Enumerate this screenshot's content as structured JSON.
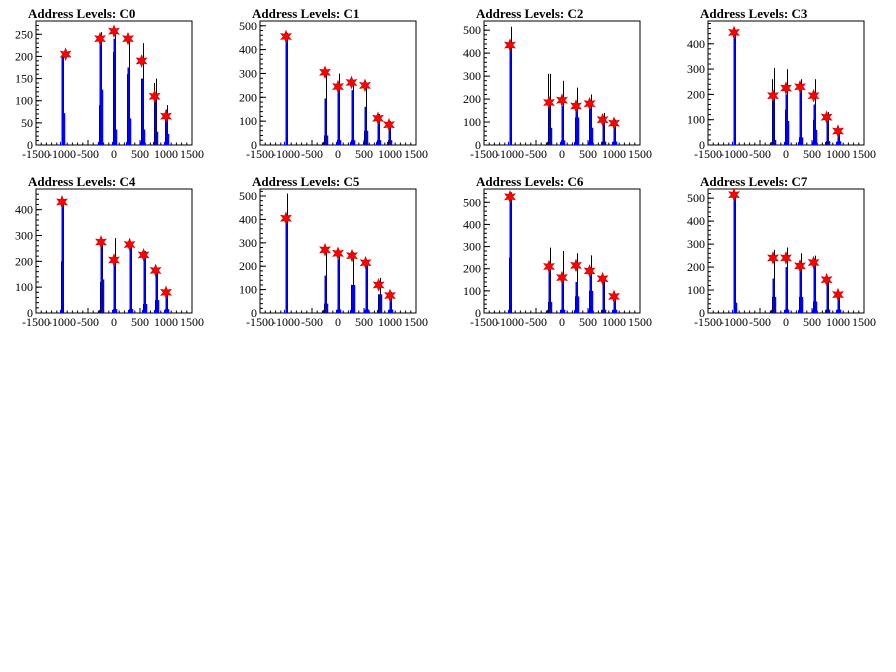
{
  "page": {
    "background": "#ffffff"
  },
  "style": {
    "blue": "#0000ff",
    "black": "#000000",
    "marker": "#ff0000"
  },
  "chart_data": [
    {
      "type": "histogram",
      "title": "Address Levels: C0",
      "xlim": [
        -1500,
        1500
      ],
      "ylim": [
        0,
        280
      ],
      "xticks": [
        -1500,
        -1000,
        -500,
        0,
        500,
        1000,
        1500
      ],
      "yticks": [
        0,
        50,
        100,
        150,
        200,
        250
      ],
      "peaks": [
        {
          "x": -1000,
          "blue": 200,
          "black": 210,
          "blue_side": 72,
          "black_side": 0
        },
        {
          "x": -270,
          "blue": 240,
          "black": 255,
          "blue_side": 125,
          "black_side": 90
        },
        {
          "x": 0,
          "blue": 240,
          "black": 250,
          "blue_side": 35,
          "black_side": 210
        },
        {
          "x": 270,
          "blue": 175,
          "black": 245,
          "blue_side": 60,
          "black_side": 160
        },
        {
          "x": 530,
          "blue": 150,
          "black": 230,
          "blue_side": 35,
          "black_side": 150
        },
        {
          "x": 780,
          "blue": 115,
          "black": 150,
          "blue_side": 30,
          "black_side": 140
        },
        {
          "x": 1000,
          "blue": 80,
          "black": 90,
          "blue_side": 25,
          "black_side": 75
        }
      ],
      "markers": [
        [
          -930,
          205
        ],
        [
          -270,
          240
        ],
        [
          0,
          257
        ],
        [
          270,
          240
        ],
        [
          530,
          190
        ],
        [
          780,
          110
        ],
        [
          1000,
          65
        ]
      ]
    },
    {
      "type": "histogram",
      "title": "Address Levels: C1",
      "xlim": [
        -1500,
        1500
      ],
      "ylim": [
        0,
        520
      ],
      "xticks": [
        -1500,
        -1000,
        -500,
        0,
        500,
        1000,
        1500
      ],
      "yticks": [
        0,
        100,
        200,
        300,
        400,
        500
      ],
      "peaks": [
        {
          "x": -1000,
          "blue": 460,
          "black": 470,
          "blue_side": 0,
          "black_side": 0
        },
        {
          "x": -250,
          "blue": 195,
          "black": 310,
          "blue_side": 40,
          "black_side": 40
        },
        {
          "x": 0,
          "blue": 230,
          "black": 300,
          "blue_side": 20,
          "black_side": 20
        },
        {
          "x": 260,
          "blue": 230,
          "black": 270,
          "blue_side": 20,
          "black_side": 20
        },
        {
          "x": 520,
          "blue": 160,
          "black": 260,
          "blue_side": 60,
          "black_side": 60
        },
        {
          "x": 770,
          "blue": 100,
          "black": 130,
          "blue_side": 20,
          "black_side": 20
        },
        {
          "x": 980,
          "blue": 75,
          "black": 100,
          "blue_side": 20,
          "black_side": 20
        }
      ],
      "markers": [
        [
          -1000,
          455
        ],
        [
          -250,
          305
        ],
        [
          0,
          245
        ],
        [
          260,
          262
        ],
        [
          520,
          250
        ],
        [
          770,
          112
        ],
        [
          980,
          85
        ]
      ]
    },
    {
      "type": "histogram",
      "title": "Address Levels: C2",
      "xlim": [
        -1500,
        1500
      ],
      "ylim": [
        0,
        540
      ],
      "xticks": [
        -1500,
        -1000,
        -500,
        0,
        500,
        1000,
        1500
      ],
      "yticks": [
        0,
        100,
        200,
        300,
        400,
        500
      ],
      "peaks": [
        {
          "x": -1000,
          "blue": 430,
          "black": 515,
          "blue_side": 0,
          "black_side": 0
        },
        {
          "x": -250,
          "blue": 180,
          "black": 310,
          "blue_side": 75,
          "black_side": 310
        },
        {
          "x": 0,
          "blue": 170,
          "black": 280,
          "blue_side": 20,
          "black_side": 20
        },
        {
          "x": 270,
          "blue": 150,
          "black": 250,
          "blue_side": 120,
          "black_side": 120
        },
        {
          "x": 530,
          "blue": 160,
          "black": 220,
          "blue_side": 75,
          "black_side": 200
        },
        {
          "x": 780,
          "blue": 100,
          "black": 140,
          "blue_side": 15,
          "black_side": 15
        },
        {
          "x": 1000,
          "blue": 80,
          "black": 110,
          "blue_side": 15,
          "black_side": 15
        }
      ],
      "markers": [
        [
          -1000,
          435
        ],
        [
          -250,
          185
        ],
        [
          0,
          195
        ],
        [
          270,
          170
        ],
        [
          530,
          180
        ],
        [
          780,
          110
        ],
        [
          1000,
          95
        ]
      ]
    },
    {
      "type": "histogram",
      "title": "Address Levels: C3",
      "xlim": [
        -1500,
        1500
      ],
      "ylim": [
        0,
        490
      ],
      "xticks": [
        -1500,
        -1000,
        -500,
        0,
        500,
        1000,
        1500
      ],
      "yticks": [
        0,
        100,
        200,
        300,
        400
      ],
      "peaks": [
        {
          "x": -1000,
          "blue": 430,
          "black": 450,
          "blue_side": 0,
          "black_side": 0
        },
        {
          "x": -250,
          "blue": 195,
          "black": 305,
          "blue_side": 20,
          "black_side": 260
        },
        {
          "x": 0,
          "blue": 200,
          "black": 300,
          "blue_side": 95,
          "black_side": 140
        },
        {
          "x": 270,
          "blue": 225,
          "black": 260,
          "blue_side": 30,
          "black_side": 30
        },
        {
          "x": 530,
          "blue": 160,
          "black": 260,
          "blue_side": 60,
          "black_side": 100
        },
        {
          "x": 780,
          "blue": 95,
          "black": 130,
          "blue_side": 15,
          "black_side": 15
        },
        {
          "x": 1000,
          "blue": 45,
          "black": 60,
          "blue_side": 15,
          "black_side": 15
        }
      ],
      "markers": [
        [
          -1000,
          445
        ],
        [
          -250,
          195
        ],
        [
          0,
          225
        ],
        [
          270,
          230
        ],
        [
          530,
          195
        ],
        [
          780,
          110
        ],
        [
          1000,
          55
        ]
      ]
    },
    {
      "type": "histogram",
      "title": "Address Levels: C4",
      "xlim": [
        -1500,
        1500
      ],
      "ylim": [
        0,
        480
      ],
      "xticks": [
        -1500,
        -1000,
        -500,
        0,
        500,
        1000,
        1500
      ],
      "yticks": [
        0,
        100,
        200,
        300,
        400
      ],
      "peaks": [
        {
          "x": -1000,
          "blue": 420,
          "black": 440,
          "blue_side": 0,
          "black_side": 200
        },
        {
          "x": -250,
          "blue": 270,
          "black": 280,
          "blue_side": 130,
          "black_side": 120
        },
        {
          "x": 0,
          "blue": 200,
          "black": 290,
          "blue_side": 15,
          "black_side": 15
        },
        {
          "x": 300,
          "blue": 265,
          "black": 270,
          "blue_side": 15,
          "black_side": 15
        },
        {
          "x": 570,
          "blue": 210,
          "black": 240,
          "blue_side": 35,
          "black_side": 35
        },
        {
          "x": 800,
          "blue": 155,
          "black": 170,
          "blue_side": 50,
          "black_side": 50
        },
        {
          "x": 1000,
          "blue": 70,
          "black": 80,
          "blue_side": 15,
          "black_side": 15
        }
      ],
      "markers": [
        [
          -1000,
          430
        ],
        [
          -250,
          275
        ],
        [
          0,
          205
        ],
        [
          300,
          265
        ],
        [
          570,
          225
        ],
        [
          800,
          165
        ],
        [
          1000,
          80
        ]
      ]
    },
    {
      "type": "histogram",
      "title": "Address Levels: C5",
      "xlim": [
        -1500,
        1500
      ],
      "ylim": [
        0,
        530
      ],
      "xticks": [
        -1500,
        -1000,
        -500,
        0,
        500,
        1000,
        1500
      ],
      "yticks": [
        0,
        100,
        200,
        300,
        400,
        500
      ],
      "peaks": [
        {
          "x": -1000,
          "blue": 400,
          "black": 510,
          "blue_side": 0,
          "black_side": 0
        },
        {
          "x": -250,
          "blue": 160,
          "black": 280,
          "blue_side": 40,
          "black_side": 40
        },
        {
          "x": 0,
          "blue": 230,
          "black": 260,
          "blue_side": 15,
          "black_side": 15
        },
        {
          "x": 270,
          "blue": 120,
          "black": 260,
          "blue_side": 120,
          "black_side": 120
        },
        {
          "x": 530,
          "blue": 200,
          "black": 220,
          "blue_side": 15,
          "black_side": 15
        },
        {
          "x": 780,
          "blue": 80,
          "black": 150,
          "blue_side": 80,
          "black_side": 80
        },
        {
          "x": 1000,
          "blue": 60,
          "black": 90,
          "blue_side": 15,
          "black_side": 15
        }
      ],
      "markers": [
        [
          -1000,
          405
        ],
        [
          -250,
          270
        ],
        [
          0,
          255
        ],
        [
          270,
          245
        ],
        [
          530,
          215
        ],
        [
          780,
          120
        ],
        [
          1000,
          75
        ]
      ]
    },
    {
      "type": "histogram",
      "title": "Address Levels: C6",
      "xlim": [
        -1500,
        1500
      ],
      "ylim": [
        0,
        560
      ],
      "xticks": [
        -1500,
        -1000,
        -500,
        0,
        500,
        1000,
        1500
      ],
      "yticks": [
        0,
        100,
        200,
        300,
        400,
        500
      ],
      "peaks": [
        {
          "x": -1000,
          "blue": 520,
          "black": 545,
          "blue_side": 0,
          "black_side": 250
        },
        {
          "x": -250,
          "blue": 210,
          "black": 295,
          "blue_side": 50,
          "black_side": 50
        },
        {
          "x": 0,
          "blue": 160,
          "black": 280,
          "blue_side": 15,
          "black_side": 15
        },
        {
          "x": 270,
          "blue": 140,
          "black": 270,
          "blue_side": 75,
          "black_side": 75
        },
        {
          "x": 530,
          "blue": 170,
          "black": 260,
          "blue_side": 100,
          "black_side": 100
        },
        {
          "x": 780,
          "blue": 150,
          "black": 160,
          "blue_side": 15,
          "black_side": 15
        },
        {
          "x": 1000,
          "blue": 70,
          "black": 80,
          "blue_side": 15,
          "black_side": 15
        }
      ],
      "markers": [
        [
          -1000,
          525
        ],
        [
          -250,
          210
        ],
        [
          0,
          160
        ],
        [
          270,
          215
        ],
        [
          530,
          190
        ],
        [
          780,
          155
        ],
        [
          1000,
          75
        ]
      ]
    },
    {
      "type": "histogram",
      "title": "Address Levels: C7",
      "xlim": [
        -1500,
        1500
      ],
      "ylim": [
        0,
        540
      ],
      "xticks": [
        -1500,
        -1000,
        -500,
        0,
        500,
        1000,
        1500
      ],
      "yticks": [
        0,
        100,
        200,
        300,
        400,
        500
      ],
      "peaks": [
        {
          "x": -1000,
          "blue": 510,
          "black": 520,
          "blue_side": 45,
          "black_side": 0
        },
        {
          "x": -250,
          "blue": 150,
          "black": 275,
          "blue_side": 70,
          "black_side": 70
        },
        {
          "x": 0,
          "blue": 200,
          "black": 285,
          "blue_side": 15,
          "black_side": 15
        },
        {
          "x": 270,
          "blue": 200,
          "black": 260,
          "blue_side": 70,
          "black_side": 70
        },
        {
          "x": 530,
          "blue": 210,
          "black": 250,
          "blue_side": 50,
          "black_side": 50
        },
        {
          "x": 780,
          "blue": 130,
          "black": 150,
          "blue_side": 15,
          "black_side": 15
        },
        {
          "x": 1000,
          "blue": 70,
          "black": 80,
          "blue_side": 15,
          "black_side": 15
        }
      ],
      "markers": [
        [
          -1000,
          515
        ],
        [
          -250,
          240
        ],
        [
          0,
          240
        ],
        [
          270,
          205
        ],
        [
          530,
          220
        ],
        [
          780,
          145
        ],
        [
          1000,
          80
        ]
      ]
    }
  ]
}
